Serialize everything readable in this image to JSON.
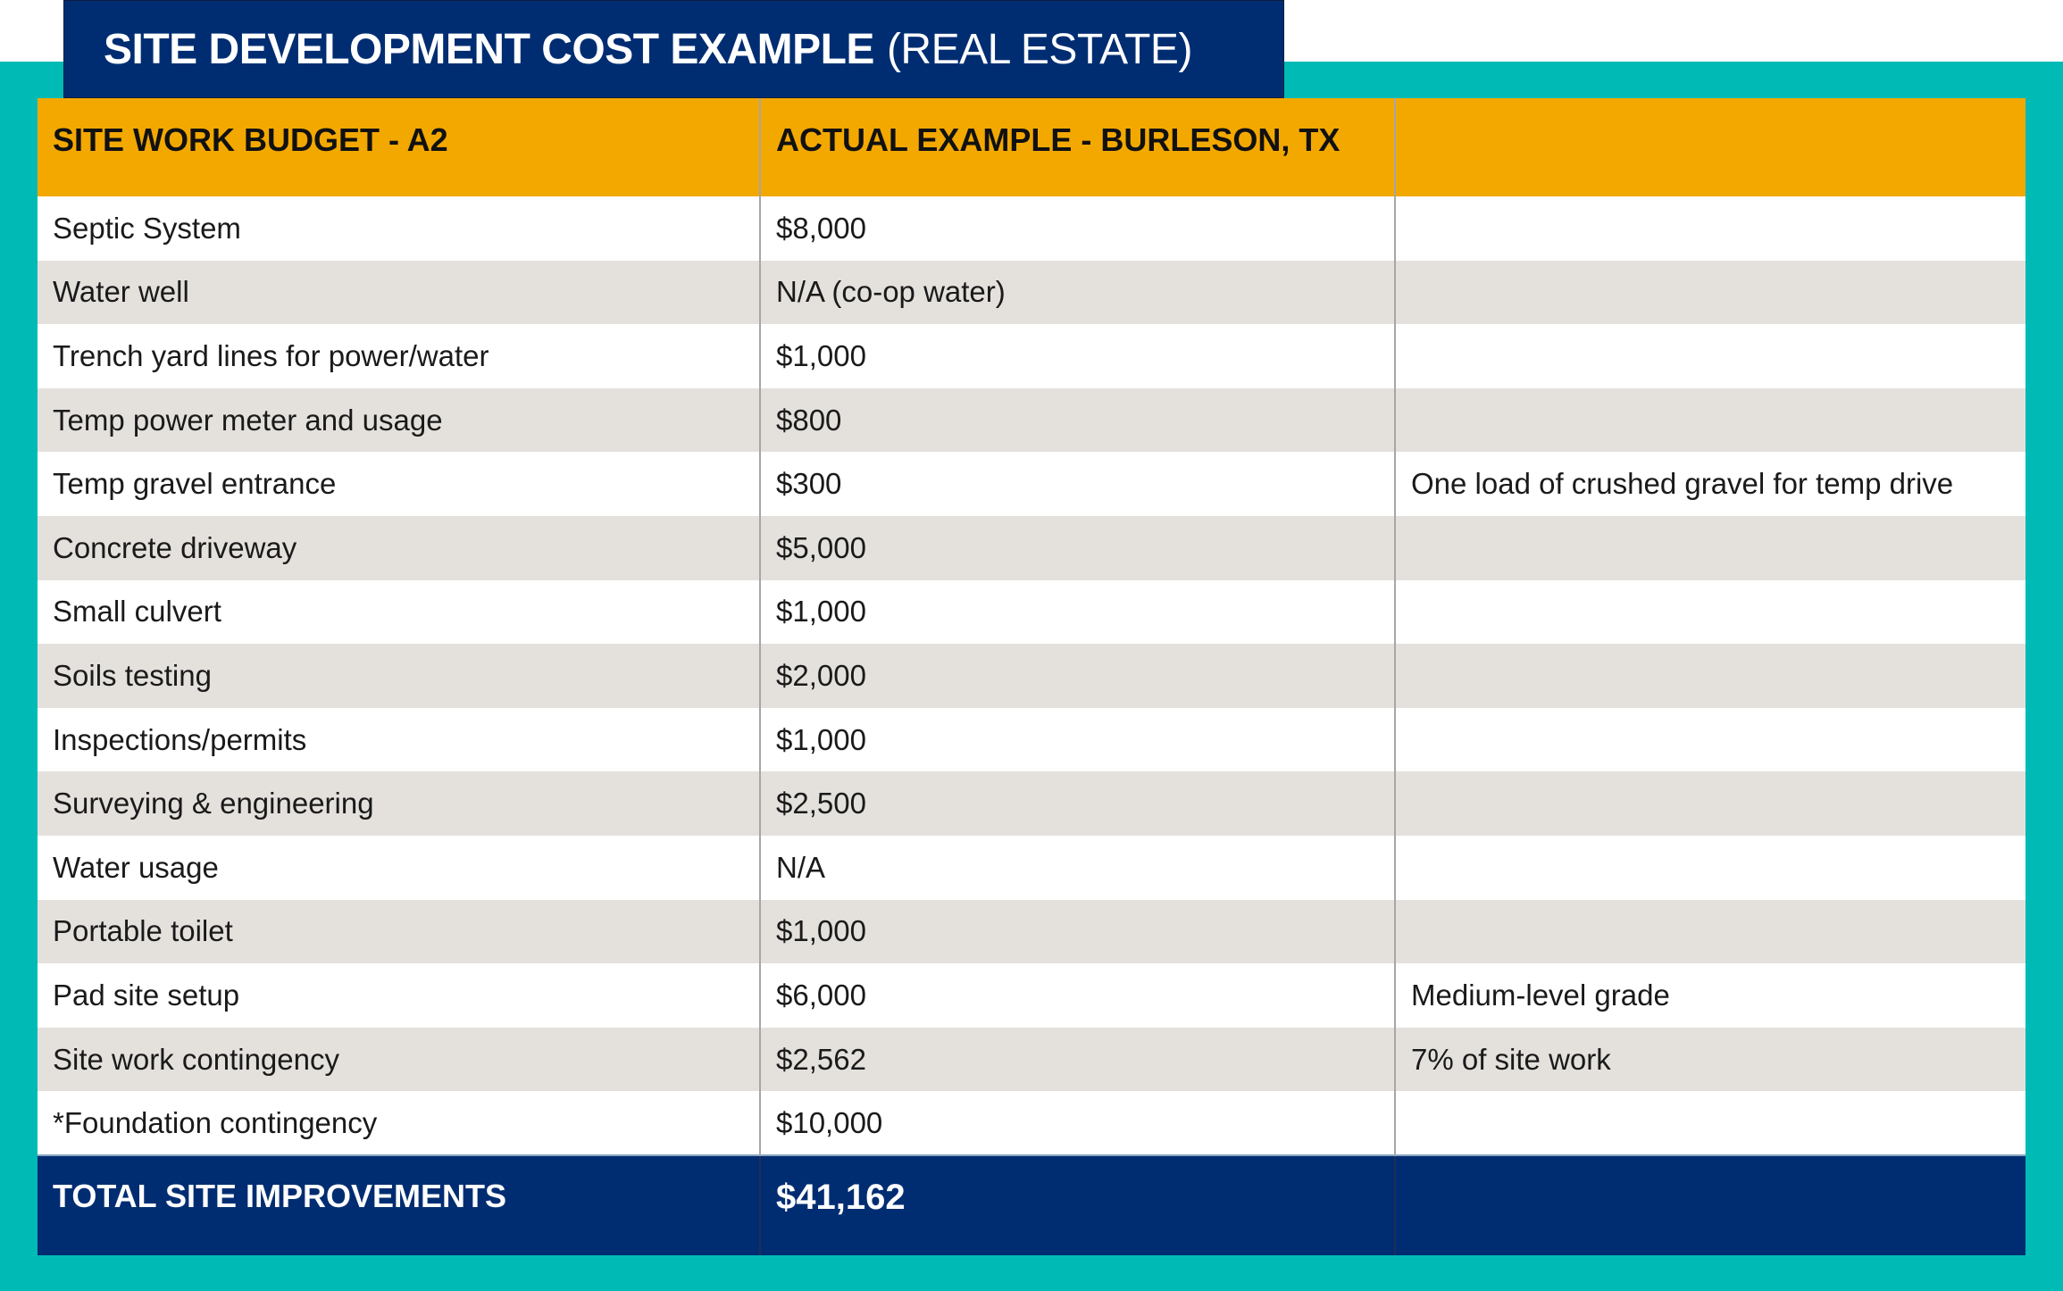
{
  "title": {
    "bold": "SITE DEVELOPMENT COST EXAMPLE",
    "normal": "(REAL ESTATE)"
  },
  "table": {
    "headers": [
      "SITE WORK BUDGET - A2",
      "ACTUAL EXAMPLE - BURLESON, TX",
      ""
    ],
    "rows": [
      [
        "Septic System",
        "$8,000",
        ""
      ],
      [
        "Water well",
        "N/A (co-op water)",
        ""
      ],
      [
        "Trench yard lines for power/water",
        "$1,000",
        ""
      ],
      [
        "Temp power meter and usage",
        "$800",
        ""
      ],
      [
        "Temp gravel entrance",
        "$300",
        "One load of crushed gravel for temp drive"
      ],
      [
        "Concrete driveway",
        "$5,000",
        ""
      ],
      [
        "Small culvert",
        "$1,000",
        ""
      ],
      [
        "Soils testing",
        "$2,000",
        ""
      ],
      [
        "Inspections/permits",
        "$1,000",
        ""
      ],
      [
        "Surveying & engineering",
        "$2,500",
        ""
      ],
      [
        "Water usage",
        "N/A",
        ""
      ],
      [
        "Portable toilet",
        "$1,000",
        ""
      ],
      [
        "Pad site setup",
        "$6,000",
        "Medium-level grade"
      ],
      [
        "Site work contingency",
        "$2,562",
        "7% of site work"
      ],
      [
        "*Foundation contingency",
        "$10,000",
        ""
      ]
    ],
    "total": [
      "TOTAL SITE IMPROVEMENTS",
      "$41,162",
      ""
    ]
  },
  "colors": {
    "navy": "#002d72",
    "teal": "#00bab5",
    "gold": "#f3a800",
    "stripe": "#e4e1dd"
  }
}
